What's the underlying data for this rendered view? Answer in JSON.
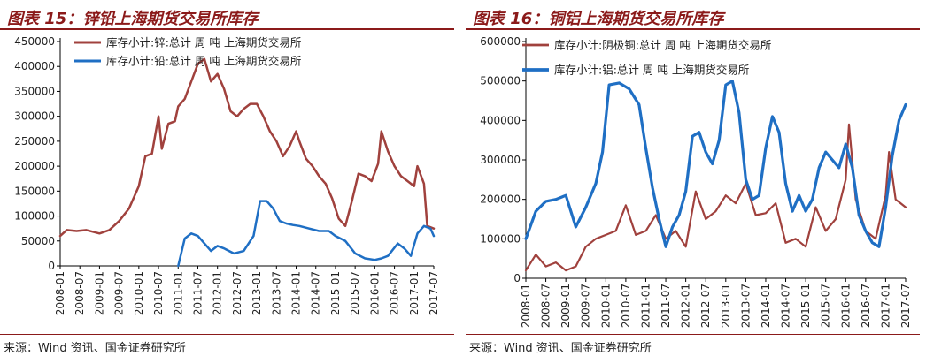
{
  "panels": [
    {
      "title": "图表 15：锌铅上海期货交易所库存",
      "source": "来源：Wind 资讯、国金证券研究所",
      "chart_data": {
        "type": "line",
        "xlabel": "",
        "ylabel": "",
        "x_range": [
          "2008-01",
          "2017-07"
        ],
        "ylim": [
          0,
          450000
        ],
        "y_ticks": [
          0,
          50000,
          100000,
          150000,
          200000,
          250000,
          300000,
          350000,
          400000,
          450000
        ],
        "x_ticks": [
          "2008-01",
          "2008-07",
          "2009-01",
          "2009-07",
          "2010-01",
          "2010-07",
          "2011-01",
          "2011-07",
          "2012-01",
          "2012-07",
          "2013-01",
          "2013-07",
          "2014-01",
          "2014-07",
          "2015-01",
          "2015-07",
          "2016-01",
          "2016-07",
          "2017-01",
          "2017-07"
        ],
        "grid": false,
        "legend_position": "top-left",
        "series": [
          {
            "name": "库存小计:锌:总计 周 吨 上海期货交易所",
            "color": "#a0413d",
            "width": 2.5,
            "x": [
              "2008-01",
              "2008-03",
              "2008-06",
              "2008-09",
              "2009-01",
              "2009-04",
              "2009-07",
              "2009-10",
              "2010-01",
              "2010-03",
              "2010-05",
              "2010-07",
              "2010-08",
              "2010-10",
              "2010-12",
              "2011-01",
              "2011-03",
              "2011-05",
              "2011-07",
              "2011-09",
              "2011-11",
              "2012-01",
              "2012-03",
              "2012-05",
              "2012-07",
              "2012-09",
              "2012-11",
              "2013-01",
              "2013-03",
              "2013-05",
              "2013-07",
              "2013-09",
              "2013-11",
              "2014-01",
              "2014-02",
              "2014-04",
              "2014-06",
              "2014-08",
              "2014-10",
              "2014-12",
              "2015-02",
              "2015-04",
              "2015-06",
              "2015-08",
              "2015-10",
              "2015-12",
              "2016-02",
              "2016-03",
              "2016-05",
              "2016-07",
              "2016-09",
              "2016-11",
              "2017-01",
              "2017-02",
              "2017-04",
              "2017-05",
              "2017-07"
            ],
            "values": [
              60000,
              72000,
              70000,
              72000,
              65000,
              72000,
              90000,
              115000,
              160000,
              220000,
              225000,
              300000,
              235000,
              285000,
              290000,
              320000,
              335000,
              370000,
              405000,
              415000,
              370000,
              385000,
              355000,
              310000,
              300000,
              315000,
              325000,
              325000,
              300000,
              270000,
              250000,
              220000,
              240000,
              270000,
              250000,
              215000,
              200000,
              180000,
              165000,
              135000,
              95000,
              80000,
              130000,
              185000,
              180000,
              170000,
              205000,
              270000,
              230000,
              200000,
              180000,
              170000,
              160000,
              200000,
              165000,
              80000,
              75000
            ]
          },
          {
            "name": "库存小计:铅:总计 周 吨 上海期货交易所",
            "color": "#1f6fc4",
            "width": 2.5,
            "x": [
              "2011-01",
              "2011-03",
              "2011-05",
              "2011-07",
              "2011-09",
              "2011-11",
              "2012-01",
              "2012-03",
              "2012-06",
              "2012-09",
              "2012-12",
              "2013-02",
              "2013-04",
              "2013-06",
              "2013-08",
              "2013-10",
              "2013-12",
              "2014-02",
              "2014-05",
              "2014-08",
              "2014-11",
              "2015-01",
              "2015-04",
              "2015-07",
              "2015-10",
              "2016-01",
              "2016-03",
              "2016-05",
              "2016-08",
              "2016-10",
              "2016-12",
              "2017-02",
              "2017-04",
              "2017-06",
              "2017-07"
            ],
            "values": [
              0,
              55000,
              65000,
              60000,
              45000,
              30000,
              40000,
              35000,
              25000,
              30000,
              60000,
              130000,
              130000,
              115000,
              90000,
              85000,
              82000,
              80000,
              75000,
              70000,
              70000,
              60000,
              50000,
              25000,
              15000,
              12000,
              15000,
              20000,
              45000,
              35000,
              20000,
              65000,
              80000,
              75000,
              60000
            ]
          }
        ]
      }
    },
    {
      "title": "图表 16：铜铝上海期货交易所库存",
      "source": "来源：Wind 资讯、国金证券研究所",
      "chart_data": {
        "type": "line",
        "xlabel": "",
        "ylabel": "",
        "x_range": [
          "2008-01",
          "2017-07"
        ],
        "ylim": [
          0,
          600000
        ],
        "y_ticks": [
          0,
          100000,
          200000,
          300000,
          400000,
          500000,
          600000
        ],
        "x_ticks": [
          "2008-01",
          "2008-07",
          "2009-01",
          "2009-07",
          "2010-01",
          "2010-07",
          "2011-01",
          "2011-07",
          "2012-01",
          "2012-07",
          "2013-01",
          "2013-07",
          "2014-01",
          "2014-07",
          "2015-01",
          "2015-07",
          "2016-01",
          "2016-07",
          "2017-01",
          "2017-07"
        ],
        "grid": false,
        "legend_position": "top-left",
        "series": [
          {
            "name": "库存小计:阴极铜:总计 周 吨 上海期货交易所",
            "color": "#a0413d",
            "width": 2.2,
            "x": [
              "2008-01",
              "2008-04",
              "2008-07",
              "2008-10",
              "2009-01",
              "2009-04",
              "2009-07",
              "2009-10",
              "2010-01",
              "2010-04",
              "2010-07",
              "2010-10",
              "2011-01",
              "2011-04",
              "2011-07",
              "2011-10",
              "2012-01",
              "2012-04",
              "2012-07",
              "2012-10",
              "2013-01",
              "2013-04",
              "2013-07",
              "2013-10",
              "2014-01",
              "2014-04",
              "2014-07",
              "2014-10",
              "2015-01",
              "2015-04",
              "2015-07",
              "2015-10",
              "2016-01",
              "2016-02",
              "2016-04",
              "2016-07",
              "2016-10",
              "2017-01",
              "2017-02",
              "2017-04",
              "2017-07"
            ],
            "values": [
              20000,
              60000,
              30000,
              40000,
              20000,
              30000,
              80000,
              100000,
              110000,
              120000,
              185000,
              110000,
              120000,
              160000,
              100000,
              120000,
              80000,
              220000,
              150000,
              170000,
              210000,
              190000,
              240000,
              160000,
              165000,
              190000,
              90000,
              100000,
              80000,
              180000,
              120000,
              150000,
              250000,
              390000,
              200000,
              120000,
              100000,
              210000,
              320000,
              200000,
              180000
            ]
          },
          {
            "name": "库存小计:铝:总计 周 吨 上海期货交易所",
            "color": "#1f6fc4",
            "width": 3.2,
            "x": [
              "2008-01",
              "2008-04",
              "2008-07",
              "2008-10",
              "2009-01",
              "2009-04",
              "2009-07",
              "2009-10",
              "2009-12",
              "2010-02",
              "2010-05",
              "2010-08",
              "2010-11",
              "2011-01",
              "2011-03",
              "2011-05",
              "2011-07",
              "2011-09",
              "2011-11",
              "2012-01",
              "2012-03",
              "2012-05",
              "2012-07",
              "2012-09",
              "2012-11",
              "2013-01",
              "2013-03",
              "2013-05",
              "2013-07",
              "2013-09",
              "2013-11",
              "2014-01",
              "2014-03",
              "2014-05",
              "2014-07",
              "2014-09",
              "2014-11",
              "2015-01",
              "2015-03",
              "2015-05",
              "2015-07",
              "2015-09",
              "2015-11",
              "2016-01",
              "2016-03",
              "2016-05",
              "2016-07",
              "2016-09",
              "2016-11",
              "2017-01",
              "2017-03",
              "2017-05",
              "2017-07"
            ],
            "values": [
              100000,
              170000,
              195000,
              200000,
              210000,
              130000,
              180000,
              240000,
              320000,
              490000,
              495000,
              480000,
              440000,
              330000,
              230000,
              150000,
              80000,
              130000,
              160000,
              220000,
              360000,
              370000,
              320000,
              290000,
              350000,
              490000,
              500000,
              420000,
              250000,
              200000,
              210000,
              330000,
              410000,
              370000,
              240000,
              170000,
              210000,
              170000,
              200000,
              280000,
              320000,
              300000,
              280000,
              340000,
              280000,
              160000,
              120000,
              90000,
              80000,
              180000,
              310000,
              400000,
              440000
            ]
          }
        ]
      }
    }
  ]
}
